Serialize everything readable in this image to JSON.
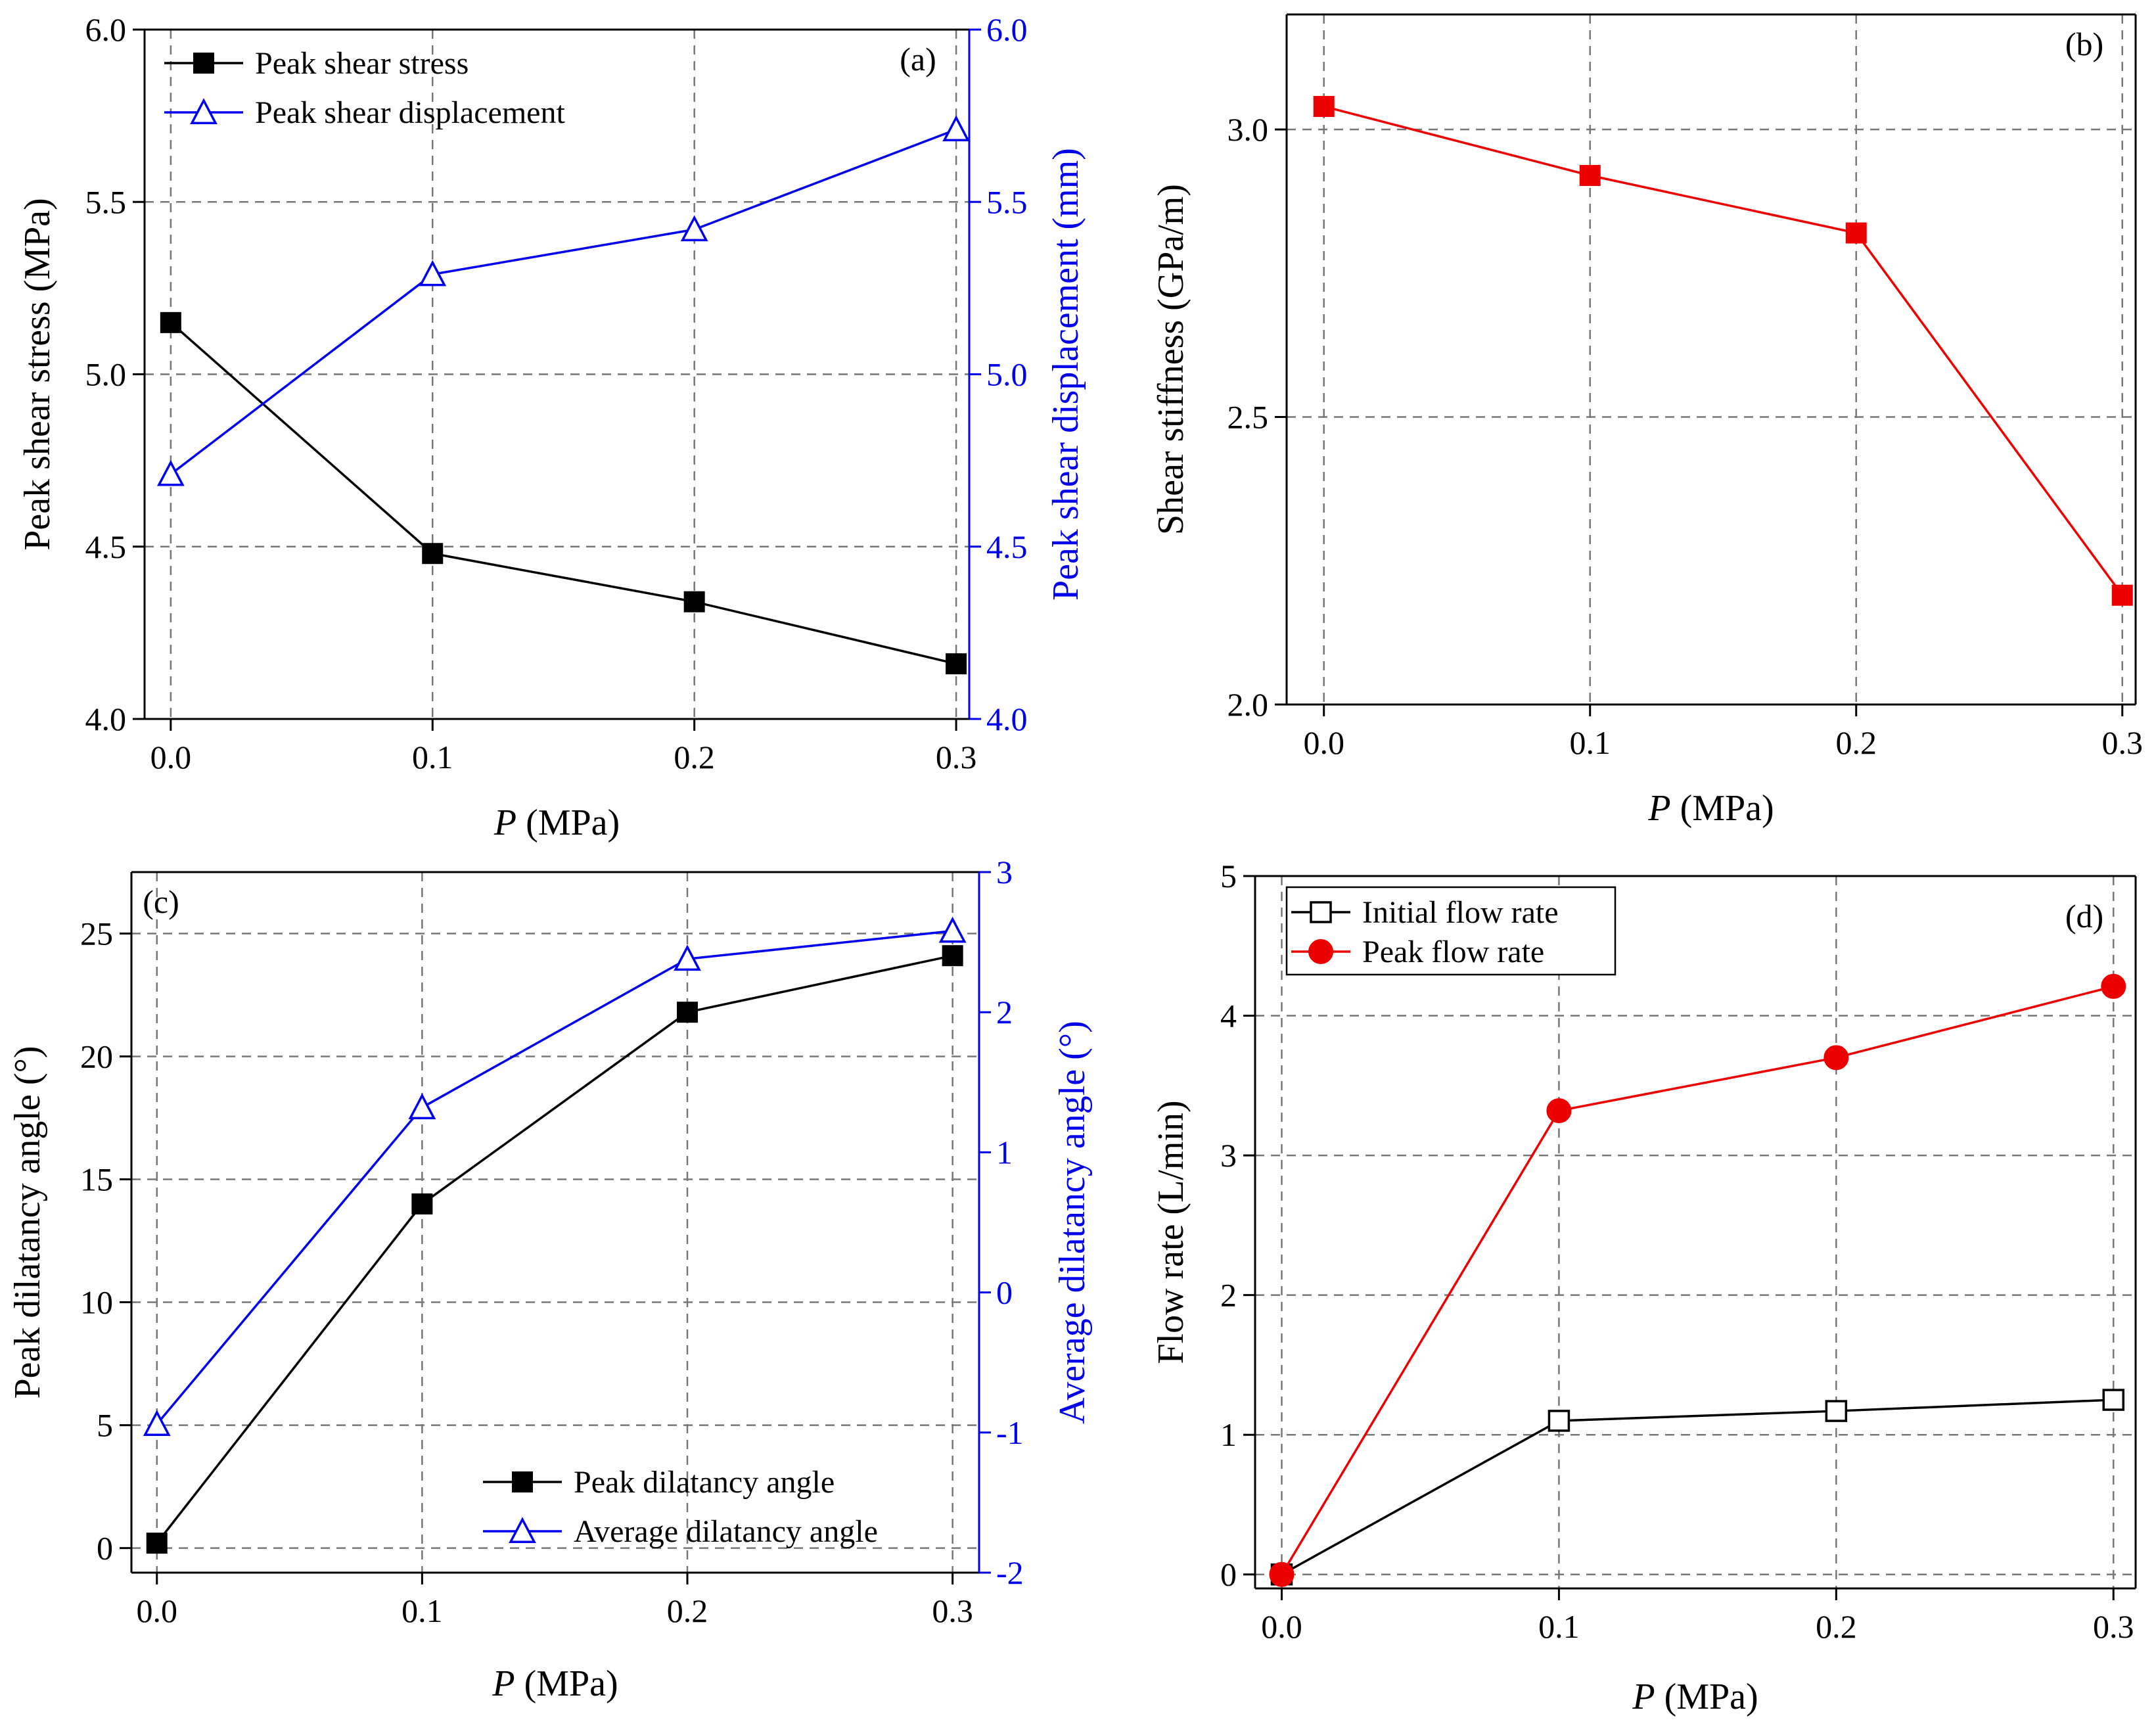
{
  "chart_data": [
    {
      "panel_label": "(a)",
      "type": "line",
      "x": [
        0.0,
        0.1,
        0.2,
        0.3
      ],
      "x_tick_labels": [
        "0.0",
        "0.1",
        "0.2",
        "0.3"
      ],
      "xlabel_var": "P",
      "xlabel_unit": " (MPa)",
      "xlim": [
        -0.01,
        0.305
      ],
      "ylabel": "Peak shear stress (MPa)",
      "ylim": [
        4.0,
        6.0
      ],
      "y_ticks": [
        4.0,
        4.5,
        5.0,
        5.5,
        6.0
      ],
      "y_tick_labels": [
        "4.0",
        "4.5",
        "5.0",
        "5.5",
        "6.0"
      ],
      "y2label": "Peak shear displacement (mm)",
      "y2lim": [
        4.0,
        6.0
      ],
      "y2_ticks": [
        4.0,
        4.5,
        5.0,
        5.5,
        6.0
      ],
      "y2_tick_labels": [
        "4.0",
        "4.5",
        "5.0",
        "5.5",
        "6.0"
      ],
      "grid": true,
      "legend_position": "top-left",
      "series": [
        {
          "name": "Peak shear stress",
          "axis": "left",
          "values": [
            5.15,
            4.48,
            4.34,
            4.16
          ],
          "color": "#000000",
          "marker": "square-filled"
        },
        {
          "name": "Peak shear displacement",
          "axis": "right",
          "values": [
            4.71,
            5.29,
            5.42,
            5.71
          ],
          "color": "#0000ee",
          "marker": "triangle-open"
        }
      ]
    },
    {
      "panel_label": "(b)",
      "type": "line",
      "x": [
        0.0,
        0.1,
        0.2,
        0.3
      ],
      "x_tick_labels": [
        "0.0",
        "0.1",
        "0.2",
        "0.3"
      ],
      "xlabel_var": "P",
      "xlabel_unit": " (MPa)",
      "xlim": [
        -0.014,
        0.305
      ],
      "ylabel": "Shear stiffness (GPa/m)",
      "ylim": [
        2.0,
        3.2
      ],
      "y_ticks": [
        2.0,
        2.5,
        3.0
      ],
      "y_tick_labels": [
        "2.0",
        "2.5",
        "3.0"
      ],
      "grid": true,
      "series": [
        {
          "name": "Shear stiffness",
          "axis": "left",
          "values": [
            3.04,
            2.92,
            2.82,
            2.19
          ],
          "color": "#ee0000",
          "marker": "square-filled"
        }
      ]
    },
    {
      "panel_label": "(c)",
      "type": "line",
      "x": [
        0.0,
        0.1,
        0.2,
        0.3
      ],
      "x_tick_labels": [
        "0.0",
        "0.1",
        "0.2",
        "0.3"
      ],
      "xlabel_var": "P",
      "xlabel_unit": " (MPa)",
      "xlim": [
        -0.0096,
        0.31
      ],
      "ylabel": "Peak dilatancy angle (°)",
      "ylim": [
        -1,
        27.5
      ],
      "y_ticks": [
        0,
        5,
        10,
        15,
        20,
        25
      ],
      "y_tick_labels": [
        "0",
        "5",
        "10",
        "15",
        "20",
        "25"
      ],
      "y2label": "Average dilatancy angle (°)",
      "y2lim": [
        -2,
        3
      ],
      "y2_ticks": [
        -2,
        -1,
        0,
        1,
        2,
        3
      ],
      "y2_tick_labels": [
        "-2",
        "-1",
        "0",
        "1",
        "2",
        "3"
      ],
      "grid": true,
      "legend_position": "bottom-right",
      "series": [
        {
          "name": "Peak dilatancy angle",
          "axis": "left",
          "values": [
            0.2,
            14.0,
            21.8,
            24.1
          ],
          "color": "#000000",
          "marker": "square-filled"
        },
        {
          "name": "Average dilatancy angle",
          "axis": "right",
          "values": [
            -0.94,
            1.32,
            2.38,
            2.58
          ],
          "color": "#0000ee",
          "marker": "triangle-open"
        }
      ]
    },
    {
      "panel_label": "(d)",
      "type": "line",
      "x": [
        0.0,
        0.1,
        0.2,
        0.3
      ],
      "x_tick_labels": [
        "0.0",
        "0.1",
        "0.2",
        "0.3"
      ],
      "xlabel_var": "P",
      "xlabel_unit": " (MPa)",
      "xlim": [
        -0.0096,
        0.308
      ],
      "ylabel": "Flow rate (L/min)",
      "ylim": [
        -0.1,
        5.0
      ],
      "y_ticks": [
        0,
        1,
        2,
        3,
        4,
        5
      ],
      "y_tick_labels": [
        "0",
        "1",
        "2",
        "3",
        "4",
        "5"
      ],
      "grid": true,
      "legend_position": "top-left",
      "series": [
        {
          "name": "Initial flow rate",
          "axis": "left",
          "values": [
            0.0,
            1.1,
            1.17,
            1.25
          ],
          "color": "#000000",
          "marker": "square-open"
        },
        {
          "name": "Peak flow rate",
          "axis": "left",
          "values": [
            0.0,
            3.32,
            3.7,
            4.21
          ],
          "color": "#ee0000",
          "marker": "circle-filled"
        }
      ]
    }
  ]
}
